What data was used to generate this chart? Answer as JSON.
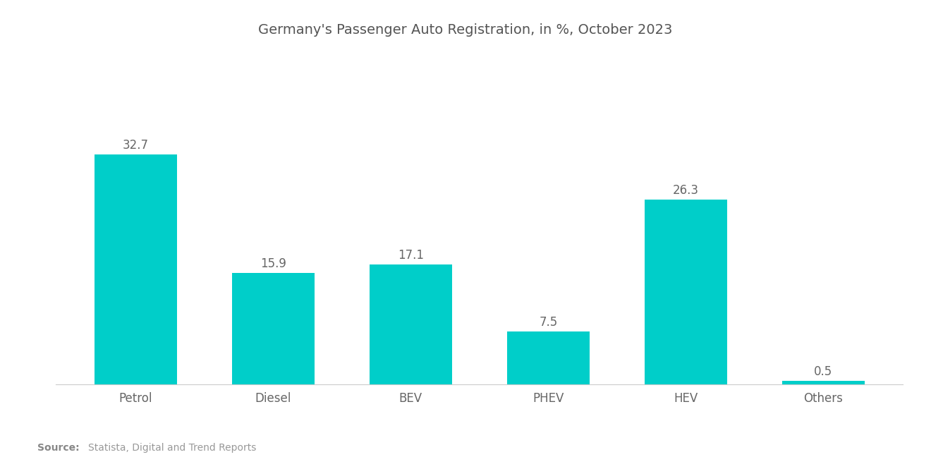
{
  "title": "Germany's Passenger Auto Registration, in %, October 2023",
  "categories": [
    "Petrol",
    "Diesel",
    "BEV",
    "PHEV",
    "HEV",
    "Others"
  ],
  "values": [
    32.7,
    15.9,
    17.1,
    7.5,
    26.3,
    0.5
  ],
  "bar_color": "#00CEC9",
  "background_color": "#ffffff",
  "title_fontsize": 14,
  "label_fontsize": 12,
  "value_fontsize": 12,
  "source_bold": "Source:",
  "source_normal": "  Statista, Digital and Trend Reports",
  "ylim": [
    0,
    40
  ],
  "bar_width": 0.6
}
